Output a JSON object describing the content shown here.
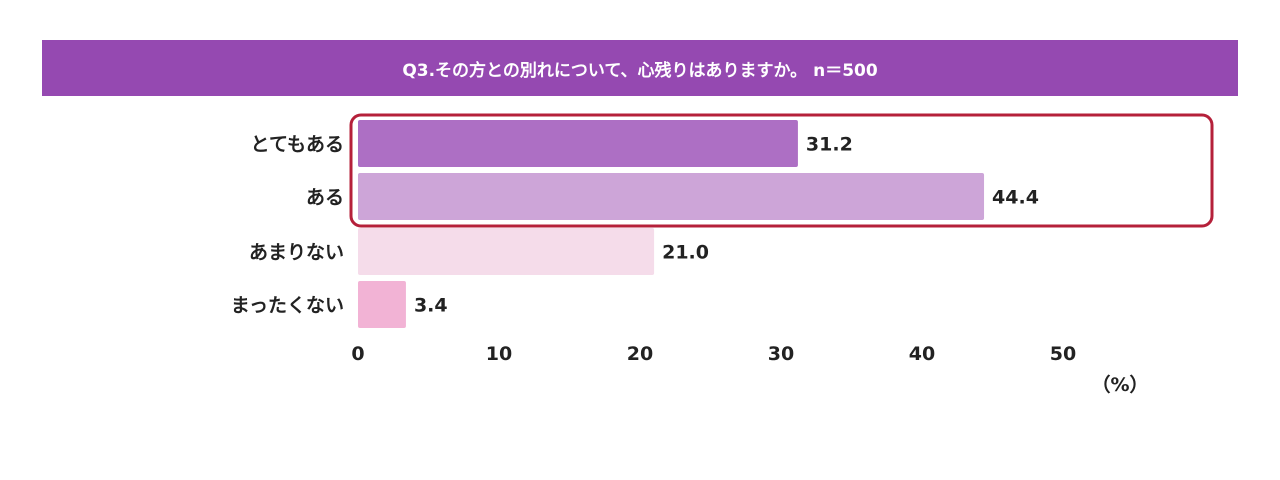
{
  "chart_data": {
    "type": "bar",
    "orientation": "horizontal",
    "title": "Q3.その方との別れについて、心残りはありますか。 n＝500",
    "categories": [
      "とてもある",
      "ある",
      "あまりない",
      "まったくない"
    ],
    "values": [
      31.2,
      44.4,
      21.0,
      3.4
    ],
    "value_labels": [
      "31.2",
      "44.4",
      "21.0",
      "3.4"
    ],
    "colors": [
      "#ad6fc4",
      "#cda5d8",
      "#f5dcea",
      "#f2b3d5"
    ],
    "xlim": [
      0,
      50
    ],
    "xticks": [
      "0",
      "10",
      "20",
      "30",
      "40",
      "50"
    ],
    "xlabel": "（%）",
    "grid": false,
    "highlight": {
      "categories": [
        "とてもある",
        "ある"
      ],
      "color": "#b5203a"
    },
    "header_color": "#9549b1"
  }
}
